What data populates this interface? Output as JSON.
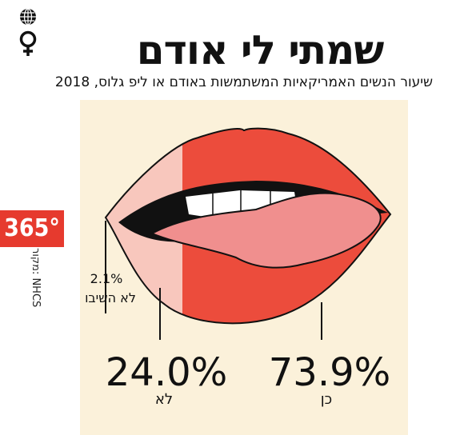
{
  "title": "שמתי לי אודם",
  "subtitle": "שיעור הנשים האמריקאיות המשתמשות באודם או ליפ גלוס, 2018",
  "brand": "365°",
  "source": "מקור: NHCS",
  "icons": [
    "globe-icon",
    "female-symbol-icon"
  ],
  "colors": {
    "yes": "#ec4c3c",
    "no": "#f8c7bd",
    "no_answer": "#f8c7bd",
    "panel": "#fbf1da",
    "lip_outline": "#111111",
    "tongue": "#f08f8e",
    "brand": "#e63a2e"
  },
  "chart_data": {
    "type": "pie",
    "slices": [
      {
        "label": "כן",
        "value": 73.9,
        "display": "73.9%"
      },
      {
        "label": "לא",
        "value": 24.0,
        "display": "24.0%"
      },
      {
        "label": "לא השיבו",
        "value": 2.1,
        "display": "2.1%"
      }
    ]
  }
}
